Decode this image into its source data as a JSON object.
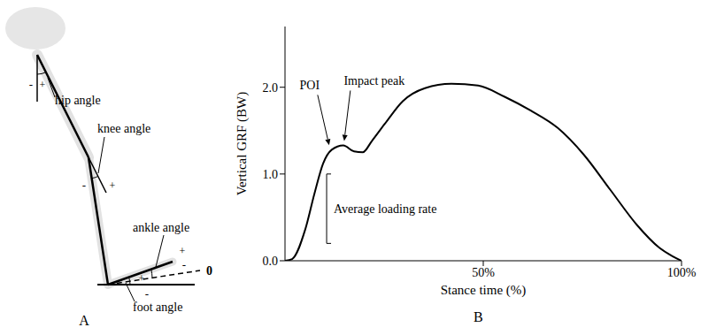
{
  "diagram": {
    "letter": "A",
    "angles": [
      {
        "label": "hip angle",
        "minus": "-",
        "plus": "+"
      },
      {
        "label": "knee angle",
        "minus": "-",
        "plus": "+"
      },
      {
        "label": "ankle angle",
        "minus": "-",
        "plus": "+"
      },
      {
        "label": "foot angle",
        "minus": "-",
        "plus": "+"
      }
    ],
    "zero_label": "0"
  },
  "chart_data": {
    "type": "line",
    "letter": "B",
    "x_label": "Stance time (%)",
    "y_label": "Vertical GRF (BW)",
    "color": "#000000",
    "x": [
      0,
      1.8,
      5.1,
      7.4,
      9.6,
      11.8,
      14.7,
      17.4,
      19.6,
      21.9,
      25.2,
      29.7,
      35.3,
      42,
      48.7,
      55.4,
      62,
      68.8,
      75.4,
      82,
      88.8,
      94.4,
      97.8,
      100
    ],
    "values": [
      0,
      0.02,
      0.36,
      0.77,
      1.12,
      1.28,
      1.33,
      1.26,
      1.25,
      1.38,
      1.58,
      1.84,
      1.99,
      2.04,
      2.02,
      1.89,
      1.73,
      1.53,
      1.22,
      0.82,
      0.41,
      0.15,
      0.05,
      0
    ],
    "xlim": [
      0,
      100
    ],
    "ylim": [
      0,
      2.7
    ],
    "xticks": [
      {
        "value": 50,
        "label": "50%"
      },
      {
        "value": 100,
        "label": "100%"
      }
    ],
    "yticks": [
      {
        "value": 0,
        "label": "0.0"
      },
      {
        "value": 1,
        "label": "1.0"
      },
      {
        "value": 2,
        "label": "2.0"
      }
    ],
    "annotations": [
      {
        "text": "POI",
        "x": 11.8,
        "y": 1.28
      },
      {
        "text": "Impact peak",
        "x": 14.7,
        "y": 1.33
      },
      {
        "text": "Average loading rate",
        "x": 10.5,
        "y_from": 0.2,
        "y_to": 1.0
      }
    ]
  }
}
